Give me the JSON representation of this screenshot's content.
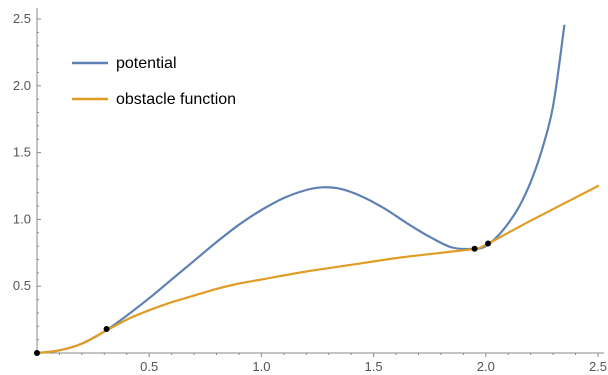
{
  "chart_data": {
    "type": "line",
    "xlim": [
      0,
      2.5
    ],
    "ylim": [
      0,
      2.5
    ],
    "x_ticks": [
      "0.5",
      "1.0",
      "1.5",
      "2.0",
      "2.5"
    ],
    "y_ticks": [
      "0.5",
      "1.0",
      "1.5",
      "2.0",
      "2.5"
    ],
    "grid": false,
    "legend_position": "top-left",
    "series": [
      {
        "name": "potential",
        "color": "#5e81b5",
        "points": [
          [
            0,
            0
          ],
          [
            0.1,
            0.02
          ],
          [
            0.2,
            0.07
          ],
          [
            0.3,
            0.16
          ],
          [
            0.4,
            0.28
          ],
          [
            0.5,
            0.41
          ],
          [
            0.6,
            0.55
          ],
          [
            0.7,
            0.69
          ],
          [
            0.8,
            0.83
          ],
          [
            0.9,
            0.96
          ],
          [
            1.0,
            1.07
          ],
          [
            1.1,
            1.16
          ],
          [
            1.2,
            1.22
          ],
          [
            1.27,
            1.24
          ],
          [
            1.35,
            1.23
          ],
          [
            1.45,
            1.17
          ],
          [
            1.55,
            1.08
          ],
          [
            1.65,
            0.97
          ],
          [
            1.75,
            0.87
          ],
          [
            1.85,
            0.79
          ],
          [
            1.95,
            0.78
          ],
          [
            2.0,
            0.8
          ],
          [
            2.05,
            0.87
          ],
          [
            2.1,
            0.97
          ],
          [
            2.15,
            1.1
          ],
          [
            2.2,
            1.28
          ],
          [
            2.25,
            1.52
          ],
          [
            2.3,
            1.85
          ],
          [
            2.35,
            2.45
          ]
        ]
      },
      {
        "name": "obstacle function",
        "color": "#e19c24",
        "points": [
          [
            0,
            0
          ],
          [
            0.1,
            0.02
          ],
          [
            0.2,
            0.07
          ],
          [
            0.3,
            0.16
          ],
          [
            0.4,
            0.25
          ],
          [
            0.5,
            0.32
          ],
          [
            0.6,
            0.38
          ],
          [
            0.7,
            0.43
          ],
          [
            0.8,
            0.48
          ],
          [
            0.9,
            0.52
          ],
          [
            1.0,
            0.55
          ],
          [
            1.2,
            0.61
          ],
          [
            1.4,
            0.66
          ],
          [
            1.6,
            0.71
          ],
          [
            1.8,
            0.75
          ],
          [
            1.95,
            0.78
          ],
          [
            2.0,
            0.81
          ],
          [
            2.2,
            0.99
          ],
          [
            2.5,
            1.25
          ]
        ]
      }
    ],
    "markers": [
      [
        0,
        0
      ],
      [
        0.31,
        0.18
      ],
      [
        1.95,
        0.78
      ],
      [
        2.01,
        0.82
      ]
    ]
  }
}
